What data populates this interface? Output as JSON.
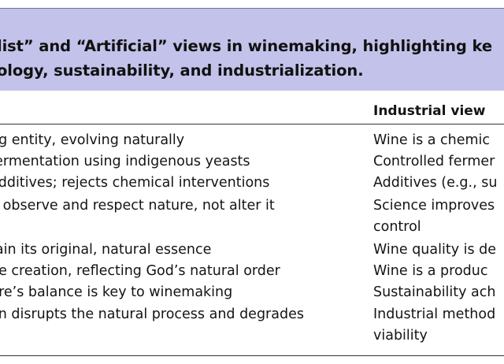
{
  "caption": {
    "line1": "list” and “Artificial” views in winemaking, highlighting ke",
    "line2": "ology, sustainability, and industrialization."
  },
  "table": {
    "header_right": "Industrial view",
    "rows": [
      {
        "left": "ng entity, evolving naturally",
        "right": "Wine is a chemic"
      },
      {
        "left": "fermentation using indigenous yeasts",
        "right": "Controlled fermer"
      },
      {
        "left": "additives; rejects chemical interventions",
        "right": "Additives (e.g., su"
      },
      {
        "left": "d observe and respect nature, not alter it",
        "right": "Science improves"
      },
      {
        "left": "",
        "right": "control"
      },
      {
        "left": "tain its original, natural essence",
        "right": "Wine quality is de"
      },
      {
        "left": "ne creation, reflecting God’s natural order",
        "right": "Wine is a produc"
      },
      {
        "left": "ure’s balance is key to winemaking",
        "right": "Sustainability ach"
      },
      {
        "left": "on disrupts the natural process and degrades",
        "right": "Industrial method"
      },
      {
        "left": "",
        "right": "viability"
      }
    ]
  }
}
